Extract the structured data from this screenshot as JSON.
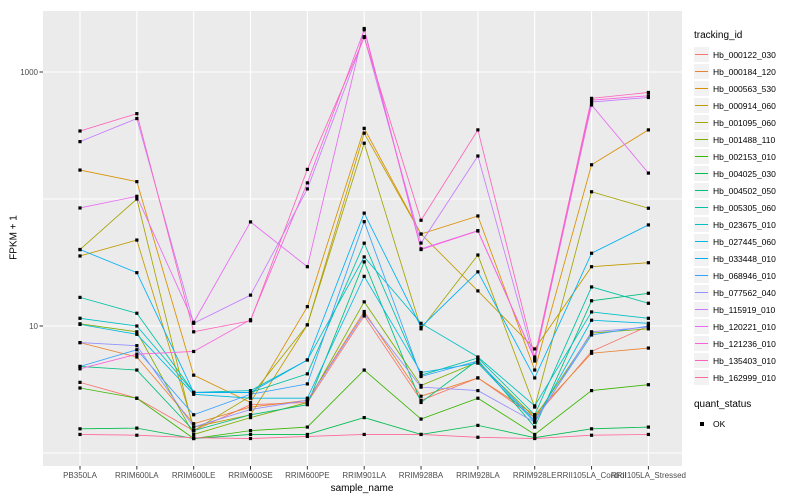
{
  "chart_data": {
    "type": "line",
    "title": "",
    "xlabel": "sample_name",
    "ylabel": "FPKM + 1",
    "y_scale": "log10",
    "ylim": [
      0.8,
      3000
    ],
    "grid": true,
    "x_categories": [
      "PB350LA",
      "RRIM600LA",
      "RRIM600LE",
      "RRIM600SE",
      "RRIM600PE",
      "RRIM901LA",
      "RRIM928BA",
      "RRIM928LA",
      "RRIM928LE",
      "RRII105LA_Control",
      "RRII105LA_Stressed"
    ],
    "y_ticks": [
      {
        "value": 1000,
        "label": "1000"
      },
      {
        "value": 10,
        "label": "10"
      }
    ],
    "y_gridlines": [
      1,
      10,
      100,
      1000
    ],
    "legend": {
      "title": "tracking_id",
      "position": "right"
    },
    "quant_legend": {
      "title": "quant_status",
      "entries": [
        "OK"
      ]
    },
    "point_shape": "square",
    "colors": {
      "background": "#FFFFFF",
      "panel_bg": "#EBEBEB",
      "grid": "#FFFFFF",
      "tick_mark": "#333333",
      "tick_label": "#4D4D4D",
      "axis_title": "#000000",
      "point": "#000000",
      "legend_key_bg": "#F2F2F2"
    },
    "series": [
      {
        "name": "Hb_000122_030",
        "color": "#F8766D",
        "values": [
          3.6,
          2.7,
          1.5,
          2.4,
          2.5,
          12,
          2.6,
          3.9,
          1.9,
          6.3,
          10
        ]
      },
      {
        "name": "Hb_000184_120",
        "color": "#EA8331",
        "values": [
          7.4,
          5.7,
          1.7,
          2.3,
          2.6,
          13,
          2.8,
          3.9,
          2.0,
          6.1,
          6.7
        ]
      },
      {
        "name": "Hb_000563_530",
        "color": "#D89000",
        "values": [
          169,
          137,
          4.1,
          2.5,
          14.2,
          360,
          53,
          73.5,
          4.5,
          186,
          350
        ]
      },
      {
        "name": "Hb_000914_060",
        "color": "#C09B00",
        "values": [
          35.6,
          47.5,
          1.6,
          2.0,
          10.2,
          330,
          53,
          18.9,
          6.6,
          29.3,
          31.5
        ]
      },
      {
        "name": "Hb_001095_060",
        "color": "#A3A500",
        "values": [
          40,
          100,
          1.5,
          2.8,
          10.2,
          275,
          9.5,
          36.2,
          2.3,
          114,
          84.6
        ]
      },
      {
        "name": "Hb_001488_110",
        "color": "#7CAE00",
        "values": [
          10.4,
          9.0,
          1.4,
          1.9,
          2.5,
          15.5,
          3.4,
          5.2,
          1.9,
          8.8,
          9.5
        ]
      },
      {
        "name": "Hb_002153_010",
        "color": "#39B600",
        "values": [
          3.25,
          2.7,
          1.3,
          1.5,
          1.6,
          4.5,
          1.85,
          2.7,
          1.4,
          3.1,
          3.45
        ]
      },
      {
        "name": "Hb_004025_030",
        "color": "#00BB4E",
        "values": [
          1.55,
          1.57,
          1.3,
          1.4,
          1.4,
          1.9,
          1.4,
          1.65,
          1.32,
          1.55,
          1.6
        ]
      },
      {
        "name": "Hb_004502_050",
        "color": "#00BF7D",
        "values": [
          4.8,
          4.5,
          1.5,
          2.0,
          2.4,
          32,
          2.5,
          5.4,
          1.6,
          15.8,
          18.1
        ]
      },
      {
        "name": "Hb_005305_060",
        "color": "#00C1A3",
        "values": [
          16.8,
          12.6,
          3.0,
          3.0,
          4.2,
          44.9,
          4.1,
          5.6,
          2.0,
          20.3,
          15.1
        ]
      },
      {
        "name": "Hb_023675_010",
        "color": "#00BFC4",
        "values": [
          11.5,
          10.0,
          3.0,
          3.1,
          5.4,
          35,
          10.5,
          5.7,
          2.35,
          12.9,
          11.5
        ]
      },
      {
        "name": "Hb_027445_060",
        "color": "#00BAE0",
        "values": [
          10.3,
          8.6,
          2.9,
          2.7,
          2.7,
          24.6,
          4.3,
          5.1,
          1.75,
          11.1,
          10.5
        ]
      },
      {
        "name": "Hb_033448_010",
        "color": "#00B0F6",
        "values": [
          40,
          26.3,
          3.0,
          3.0,
          5.4,
          77.4,
          9.8,
          26.7,
          3.9,
          37.4,
          62.5
        ]
      },
      {
        "name": "Hb_068946_010",
        "color": "#35A2FF",
        "values": [
          4.8,
          6.5,
          2.0,
          2.9,
          3.5,
          66.3,
          4.0,
          5.3,
          1.8,
          8.5,
          10.0
        ]
      },
      {
        "name": "Hb_077562_040",
        "color": "#9590FF",
        "values": [
          7.4,
          7.0,
          1.6,
          2.2,
          2.6,
          12.5,
          3.3,
          3.1,
          1.75,
          9.0,
          9.8
        ]
      },
      {
        "name": "Hb_115919_010",
        "color": "#C77CFF",
        "values": [
          283,
          430,
          10.5,
          17.5,
          120,
          1900,
          45,
          218,
          5.3,
          580,
          630
        ]
      },
      {
        "name": "Hb_120221_010",
        "color": "#E76BF3",
        "values": [
          85,
          105,
          10.7,
          66,
          29.3,
          2200,
          40.5,
          56.3,
          5.5,
          550,
          160
        ]
      },
      {
        "name": "Hb_121236_010",
        "color": "#FA62DB",
        "values": [
          4.6,
          6.0,
          6.3,
          11.2,
          134,
          2150,
          40,
          56,
          5.5,
          600,
          650
        ]
      },
      {
        "name": "Hb_135403_010",
        "color": "#FF62BC",
        "values": [
          343,
          470,
          9.0,
          11,
          171,
          1870,
          68,
          350,
          5.7,
          620,
          690
        ]
      },
      {
        "name": "Hb_162999_010",
        "color": "#FF6A98",
        "values": [
          1.4,
          1.38,
          1.32,
          1.3,
          1.35,
          1.4,
          1.4,
          1.33,
          1.3,
          1.38,
          1.4
        ]
      }
    ]
  }
}
